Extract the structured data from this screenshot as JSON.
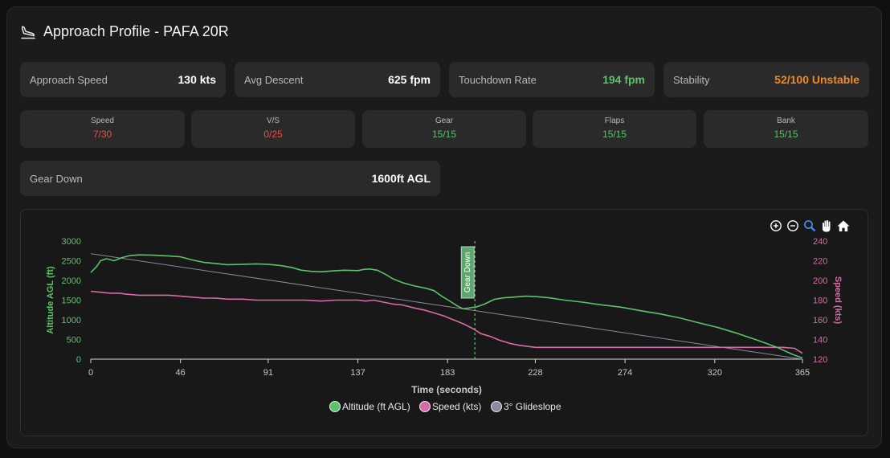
{
  "header": {
    "title": "Approach Profile - PAFA 20R",
    "icon": "landing-plane-icon"
  },
  "stats": [
    {
      "label": "Approach Speed",
      "value": "130 kts",
      "color": "#ffffff"
    },
    {
      "label": "Avg Descent",
      "value": "625 fpm",
      "color": "#ffffff"
    },
    {
      "label": "Touchdown Rate",
      "value": "194 fpm",
      "color": "#5bc26b"
    },
    {
      "label": "Stability",
      "value": "52/100 Unstable",
      "color": "#f08a24"
    }
  ],
  "checks": [
    {
      "label": "Speed",
      "value": "7/30",
      "status": "fail"
    },
    {
      "label": "V/S",
      "value": "0/25",
      "status": "fail"
    },
    {
      "label": "Gear",
      "value": "15/15",
      "status": "pass"
    },
    {
      "label": "Flaps",
      "value": "15/15",
      "status": "pass"
    },
    {
      "label": "Bank",
      "value": "15/15",
      "status": "pass"
    }
  ],
  "gear": {
    "label": "Gear Down",
    "value": "1600ft AGL"
  },
  "toolbar": [
    "zoom-in-icon",
    "zoom-out-icon",
    "zoom-select-icon",
    "pan-hand-icon",
    "reset-home-icon"
  ],
  "colors": {
    "altitude": "#5bc26b",
    "speed": "#d86aa8",
    "glideslope": "#8a8aa0",
    "fail": "#ef4a4a",
    "pass": "#5bc26b",
    "warn": "#f08a24"
  },
  "chart_data": {
    "type": "line",
    "xlabel": "Time (seconds)",
    "ylabel_left": "Altitude AGL (ft)",
    "ylabel_right": "Speed (kts)",
    "x_ticks": [
      "0",
      "46",
      "91",
      "137",
      "183",
      "228",
      "274",
      "320",
      "365"
    ],
    "y_left_ticks": [
      "0",
      "500",
      "1000",
      "1500",
      "2000",
      "2500",
      "3000"
    ],
    "y_right_ticks": [
      "120",
      "140",
      "160",
      "180",
      "200",
      "220",
      "240"
    ],
    "xlim": [
      0,
      365
    ],
    "ylim_left": [
      0,
      3000
    ],
    "ylim_right": [
      120,
      240
    ],
    "annotation": {
      "label": "Gear Down",
      "x": 197
    },
    "legend": [
      "Altitude (ft AGL)",
      "Speed (kts)",
      "3° Glideslope"
    ],
    "legend_position": "bottom",
    "series": [
      {
        "name": "Altitude (ft AGL)",
        "axis": "left",
        "points": [
          [
            0,
            2200
          ],
          [
            3,
            2350
          ],
          [
            5,
            2500
          ],
          [
            8,
            2550
          ],
          [
            12,
            2500
          ],
          [
            16,
            2580
          ],
          [
            20,
            2630
          ],
          [
            25,
            2650
          ],
          [
            32,
            2640
          ],
          [
            40,
            2620
          ],
          [
            46,
            2600
          ],
          [
            52,
            2520
          ],
          [
            58,
            2460
          ],
          [
            64,
            2430
          ],
          [
            70,
            2400
          ],
          [
            78,
            2410
          ],
          [
            85,
            2420
          ],
          [
            91,
            2410
          ],
          [
            97,
            2380
          ],
          [
            103,
            2330
          ],
          [
            108,
            2260
          ],
          [
            113,
            2230
          ],
          [
            118,
            2220
          ],
          [
            124,
            2240
          ],
          [
            130,
            2260
          ],
          [
            137,
            2250
          ],
          [
            140,
            2280
          ],
          [
            143,
            2290
          ],
          [
            147,
            2260
          ],
          [
            151,
            2160
          ],
          [
            155,
            2040
          ],
          [
            160,
            1940
          ],
          [
            166,
            1860
          ],
          [
            172,
            1800
          ],
          [
            176,
            1740
          ],
          [
            180,
            1600
          ],
          [
            184,
            1480
          ],
          [
            188,
            1350
          ],
          [
            191,
            1280
          ],
          [
            194,
            1300
          ],
          [
            198,
            1330
          ],
          [
            202,
            1400
          ],
          [
            207,
            1520
          ],
          [
            212,
            1560
          ],
          [
            218,
            1580
          ],
          [
            223,
            1600
          ],
          [
            228,
            1590
          ],
          [
            235,
            1560
          ],
          [
            243,
            1500
          ],
          [
            252,
            1450
          ],
          [
            262,
            1380
          ],
          [
            272,
            1320
          ],
          [
            282,
            1230
          ],
          [
            292,
            1150
          ],
          [
            302,
            1050
          ],
          [
            312,
            920
          ],
          [
            322,
            800
          ],
          [
            332,
            650
          ],
          [
            342,
            480
          ],
          [
            352,
            300
          ],
          [
            360,
            120
          ],
          [
            365,
            30
          ]
        ]
      },
      {
        "name": "Speed (kts)",
        "axis": "right",
        "points": [
          [
            0,
            189
          ],
          [
            5,
            188
          ],
          [
            10,
            187
          ],
          [
            15,
            187
          ],
          [
            18,
            186
          ],
          [
            25,
            185
          ],
          [
            32,
            185
          ],
          [
            40,
            185
          ],
          [
            46,
            184
          ],
          [
            52,
            183
          ],
          [
            58,
            182
          ],
          [
            64,
            182
          ],
          [
            70,
            181
          ],
          [
            78,
            181
          ],
          [
            85,
            180
          ],
          [
            91,
            180
          ],
          [
            97,
            180
          ],
          [
            103,
            180
          ],
          [
            110,
            180
          ],
          [
            118,
            179
          ],
          [
            126,
            180
          ],
          [
            132,
            180
          ],
          [
            137,
            180
          ],
          [
            141,
            179
          ],
          [
            145,
            180
          ],
          [
            150,
            178
          ],
          [
            155,
            176
          ],
          [
            160,
            175
          ],
          [
            166,
            172
          ],
          [
            171,
            170
          ],
          [
            176,
            167
          ],
          [
            181,
            164
          ],
          [
            186,
            160
          ],
          [
            191,
            156
          ],
          [
            196,
            151
          ],
          [
            200,
            146
          ],
          [
            205,
            143
          ],
          [
            210,
            139
          ],
          [
            215,
            136
          ],
          [
            220,
            134
          ],
          [
            228,
            132
          ],
          [
            240,
            132
          ],
          [
            260,
            132
          ],
          [
            280,
            132
          ],
          [
            300,
            132
          ],
          [
            320,
            132
          ],
          [
            340,
            132
          ],
          [
            355,
            132
          ],
          [
            361,
            131
          ],
          [
            365,
            126
          ]
        ]
      },
      {
        "name": "3° Glideslope",
        "axis": "left",
        "points": [
          [
            0,
            2680
          ],
          [
            365,
            0
          ]
        ]
      }
    ]
  }
}
